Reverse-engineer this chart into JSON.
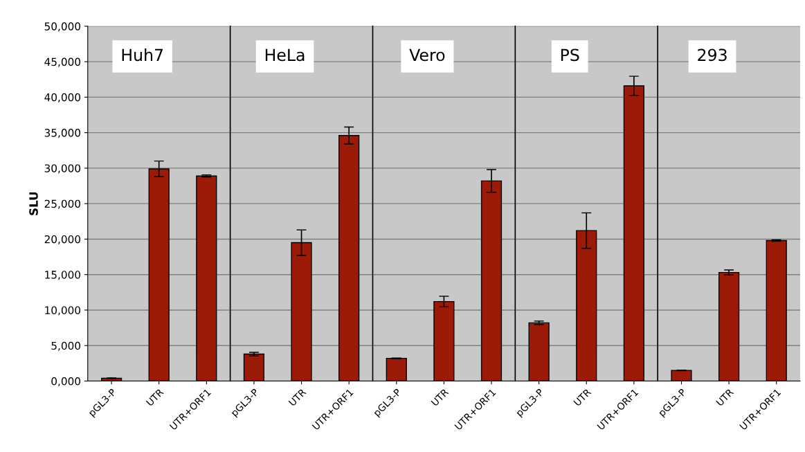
{
  "chart_data": {
    "type": "bar",
    "ylabel": "SLU",
    "categories": [
      "pGL3-P",
      "UTR",
      "UTR+ORF1",
      "pGL3-P",
      "UTR",
      "UTR+ORF1",
      "pGL3-P",
      "UTR",
      "UTR+ORF1",
      "pGL3-P",
      "UTR",
      "UTR+ORF1",
      "pGL3-P",
      "UTR",
      "UTR+ORF1"
    ],
    "values": [
      400,
      29900,
      28900,
      3800,
      19500,
      34600,
      3200,
      11200,
      28200,
      8200,
      21200,
      41600,
      1500,
      15300,
      19800
    ],
    "errors": [
      50,
      1100,
      150,
      250,
      1800,
      1200,
      50,
      750,
      1600,
      250,
      2500,
      1350,
      50,
      350,
      100
    ],
    "color": "#9c1a08",
    "ylim": [
      0,
      50000
    ],
    "yticks": [
      {
        "value": 0,
        "label": "0,000"
      },
      {
        "value": 5000,
        "label": "5,000"
      },
      {
        "value": 10000,
        "label": "10,000"
      },
      {
        "value": 15000,
        "label": "15,000"
      },
      {
        "value": 20000,
        "label": "20,000"
      },
      {
        "value": 25000,
        "label": "25,000"
      },
      {
        "value": 30000,
        "label": "30,000"
      },
      {
        "value": 35000,
        "label": "35,000"
      },
      {
        "value": 40000,
        "label": "40,000"
      },
      {
        "value": 45000,
        "label": "45,000"
      },
      {
        "value": 50000,
        "label": "50,000"
      }
    ],
    "grid": "y",
    "annotations": [
      "Huh7",
      "HeLa",
      "Vero",
      "PS",
      "293"
    ]
  }
}
